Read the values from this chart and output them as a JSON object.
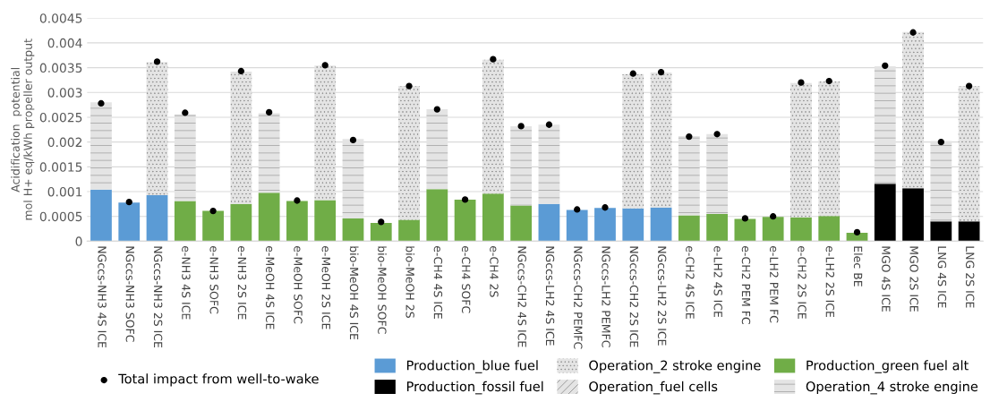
{
  "chart_data": {
    "type": "bar",
    "stacked": true,
    "ylabel": "Acidification  potential\nmol H+ eq/kWh propeller output",
    "categories": [
      "NGccs-NH3 4S ICE",
      "NGccs-NH3 SOFC",
      "NGccs-NH3 2S ICE",
      "e-NH3 4S ICE",
      "e-NH3 SOFC",
      "e-NH3 2S ICE",
      "e-MeOH 4S ICE",
      "e-MeOH SOFC",
      "e-MeOH 2S ICE",
      "bio-MeOH 4S ICE",
      "bio-MeOH SOFC",
      "bio-MeOH 2S",
      "e-CH4 4S ICE",
      "e-CH4 SOFC",
      "e-CH4 2S",
      "NGccs-CH2 4S ICE",
      "NGccs-LH2 4S ICE",
      "NGccs-CH2 PEMFC",
      "NGccs-LH2 PEMFC",
      "NGccs-CH2 2S ICE",
      "NGccs-LH2 2S ICE",
      "e-CH2 4S ICE",
      "e-LH2 4S ICE",
      "e-CH2 PEM FC",
      "e-LH2 PEM FC",
      "e-CH2 2S ICE",
      "e-LH2 2S ICE",
      "Elec BE",
      "MGO 4S ICE",
      "MGO 2S ICE",
      "LNG 4S ICE",
      "LNG 2S ICE"
    ],
    "series": [
      {
        "name": "Production_blue fuel",
        "color": "#5b9bd5",
        "values": [
          0.00104,
          0.00078,
          0.00093,
          null,
          null,
          null,
          null,
          null,
          null,
          null,
          null,
          null,
          null,
          null,
          null,
          null,
          0.00075,
          0.00063,
          0.00067,
          0.00066,
          0.00068,
          null,
          null,
          null,
          null,
          null,
          null,
          null,
          null,
          null,
          null,
          null
        ]
      },
      {
        "name": "Production_fossil fuel",
        "color": "#000000",
        "values": [
          null,
          null,
          null,
          null,
          null,
          null,
          null,
          null,
          null,
          null,
          null,
          null,
          null,
          null,
          null,
          null,
          null,
          null,
          null,
          null,
          null,
          null,
          null,
          null,
          null,
          null,
          null,
          null,
          0.00116,
          0.00107,
          0.0004,
          0.0004
        ]
      },
      {
        "name": "Production_green fuel alt",
        "color": "#70ad47",
        "values": [
          null,
          null,
          null,
          0.00081,
          0.00061,
          0.00075,
          0.00098,
          0.00081,
          0.00083,
          0.00046,
          0.00037,
          0.00043,
          0.00105,
          0.00084,
          0.00096,
          0.00072,
          null,
          null,
          null,
          null,
          null,
          0.00052,
          0.00055,
          0.00045,
          0.00049,
          0.00048,
          0.00051,
          0.00017,
          null,
          null,
          null,
          null
        ]
      },
      {
        "name": "Operation_2 stroke engine",
        "color": "#7f7f7f",
        "values": [
          null,
          null,
          0.00268,
          null,
          null,
          0.00267,
          null,
          null,
          0.00271,
          null,
          null,
          0.0027,
          null,
          null,
          0.0027,
          null,
          null,
          null,
          null,
          0.00271,
          0.00272,
          null,
          null,
          null,
          null,
          0.00271,
          0.00271,
          null,
          null,
          0.00315,
          null,
          0.00273
        ]
      },
      {
        "name": "Operation_fuel cells",
        "color": "#8c8c8c",
        "values": [
          null,
          null,
          null,
          null,
          null,
          null,
          null,
          null,
          null,
          null,
          null,
          null,
          null,
          null,
          null,
          null,
          null,
          null,
          null,
          null,
          null,
          null,
          null,
          null,
          null,
          null,
          null,
          null,
          null,
          null,
          null,
          null
        ]
      },
      {
        "name": "Operation_4 stroke engine",
        "color": "#a6a6a6",
        "values": [
          0.00176,
          null,
          null,
          0.00175,
          null,
          null,
          0.0016,
          null,
          null,
          0.0016,
          null,
          null,
          0.00161,
          null,
          null,
          0.0016,
          0.0016,
          null,
          null,
          null,
          null,
          0.0016,
          0.00161,
          null,
          null,
          null,
          null,
          null,
          0.00237,
          null,
          0.00162,
          null
        ]
      },
      {
        "name": "Total impact from well-to-wake",
        "type": "scatter",
        "marker": "circle",
        "color": "#000000",
        "values": [
          0.00278,
          0.00079,
          0.00362,
          0.00259,
          0.00061,
          0.00343,
          0.0026,
          0.00082,
          0.00355,
          0.00204,
          0.00039,
          0.00313,
          0.00266,
          0.00084,
          0.00367,
          0.00232,
          0.00235,
          0.00064,
          0.00068,
          0.00338,
          0.00341,
          0.00211,
          0.00216,
          0.00046,
          0.0005,
          0.0032,
          0.00323,
          0.00018,
          0.00354,
          0.00421,
          0.002,
          0.00313
        ]
      }
    ],
    "ylim": [
      0,
      0.0045
    ],
    "yticks": [
      0,
      {
        "value": 0.0005,
        "label": "0.0005"
      },
      {
        "value": 0.001,
        "label": "0.001"
      },
      {
        "value": 0.0015,
        "label": "0.0015"
      },
      {
        "value": 0.002,
        "label": "0.002"
      },
      {
        "value": 0.0025,
        "label": "0.0025"
      },
      {
        "value": 0.003,
        "label": "0.003"
      },
      {
        "value": 0.0035,
        "label": "0.0035"
      },
      {
        "value": 0.004,
        "label": "0.004"
      },
      {
        "value": 0.0045,
        "label": "0.0045"
      }
    ],
    "grid": "y",
    "legend": "bottom"
  }
}
